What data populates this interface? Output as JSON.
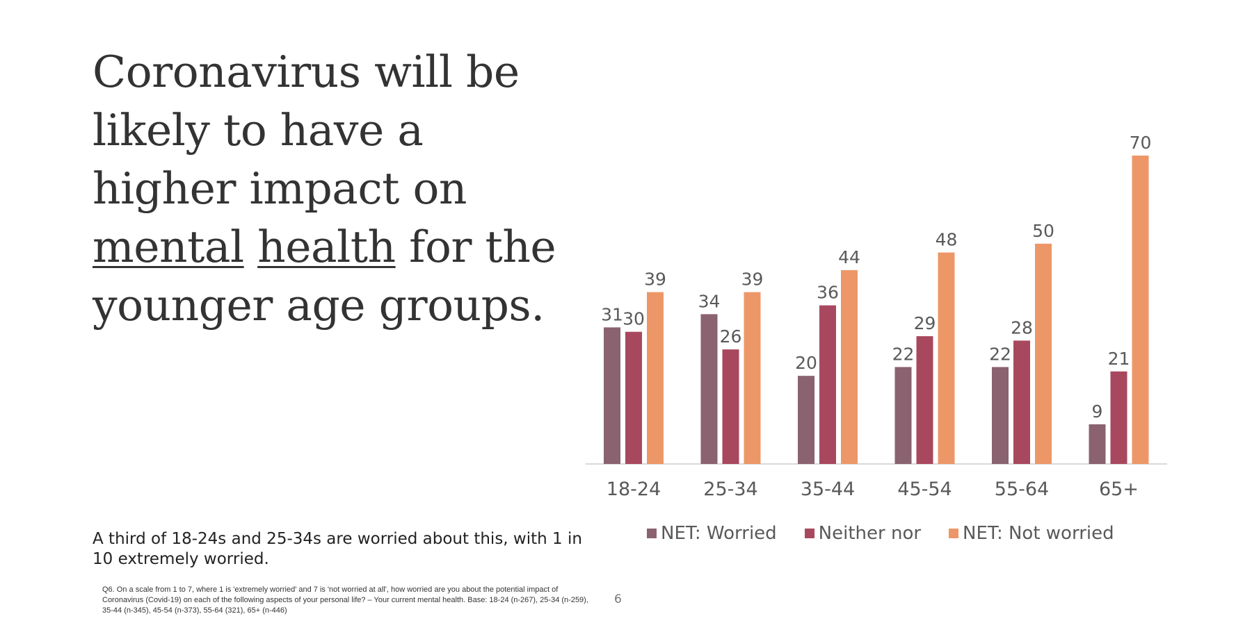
{
  "headline": {
    "part1": "Coronavirus will be likely to have a higher impact on ",
    "underline1": "mental",
    "space": " ",
    "underline2": "health",
    "part2": " for the younger age groups."
  },
  "subtext": "A third of 18-24s and 25-34s are worried about this, with 1 in 10 extremely worried.",
  "footnote": "Q6. On a scale from 1 to 7, where 1 is 'extremely worried' and 7 is 'not worried at all', how worried are you about the potential impact of Coronavirus (Covid-19) on each of the following aspects of your personal life? – Your current mental health. Base: 18-24 (n-267), 25-34 (n-259), 35-44 (n-345), 45-54 (n-373), 55-64 (321), 65+ (n-446)",
  "page_number": "6",
  "chart_data": {
    "type": "bar",
    "categories": [
      "18-24",
      "25-34",
      "35-44",
      "45-54",
      "55-64",
      "65+"
    ],
    "series": [
      {
        "name": "NET: Worried",
        "values": [
          31,
          34,
          20,
          22,
          22,
          9
        ],
        "color": "#8a6270"
      },
      {
        "name": "Neither nor",
        "values": [
          30,
          26,
          36,
          29,
          28,
          21
        ],
        "color": "#a8485f"
      },
      {
        "name": "NET: Not worried",
        "values": [
          39,
          39,
          44,
          48,
          50,
          70
        ],
        "color": "#ed9768"
      }
    ],
    "title": "",
    "xlabel": "",
    "ylabel": "",
    "ylim": [
      0,
      70
    ],
    "grid": false,
    "legend_position": "bottom",
    "data_label_color": "#595959",
    "axis_color": "#d9d9d9"
  }
}
